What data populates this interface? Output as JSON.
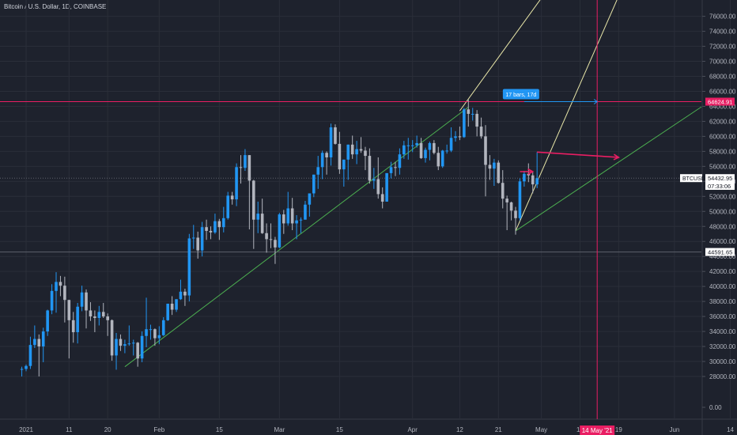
{
  "chart_data": {
    "type": "candlestick",
    "title": "Bitcoin / U.S. Dollar, 1D, COINBASE",
    "symbol": "BTCUSD",
    "colors": {
      "background": "#1e222d",
      "grid": "#2a2e39",
      "up": "#2196f3",
      "down": "#b2b5be",
      "trendline": "#4caf50",
      "projection": "#e8e6a8",
      "marker": "#e91e63",
      "measure": "#2196f3",
      "axis_text": "#b2b5be"
    },
    "y_ticks": [
      "0.00",
      "28000.00",
      "30000.00",
      "32000.00",
      "34000.00",
      "36000.00",
      "38000.00",
      "40000.00",
      "42000.00",
      "44000.00",
      "46000.00",
      "48000.00",
      "50000.00",
      "52000.00",
      "54000.00",
      "56000.00",
      "58000.00",
      "60000.00",
      "62000.00",
      "64000.00",
      "66000.00",
      "68000.00",
      "70000.00",
      "72000.00",
      "74000.00",
      "76000.00"
    ],
    "x_ticks": [
      {
        "label": "2021",
        "date": "2021-01-01"
      },
      {
        "label": "11",
        "date": "2021-01-11"
      },
      {
        "label": "20",
        "date": "2021-01-20"
      },
      {
        "label": "Feb",
        "date": "2021-02-01"
      },
      {
        "label": "15",
        "date": "2021-02-15"
      },
      {
        "label": "Mar",
        "date": "2021-03-01"
      },
      {
        "label": "15",
        "date": "2021-03-15"
      },
      {
        "label": "Apr",
        "date": "2021-04-01"
      },
      {
        "label": "12",
        "date": "2021-04-12"
      },
      {
        "label": "21",
        "date": "2021-04-21"
      },
      {
        "label": "May",
        "date": "2021-05-01"
      },
      {
        "label": "10",
        "date": "2021-05-10"
      },
      {
        "label": "19",
        "date": "2021-05-19"
      },
      {
        "label": "Jun",
        "date": "2021-06-01"
      },
      {
        "label": "14",
        "date": "2021-06-14"
      }
    ],
    "price_labels": [
      {
        "text": "64624.91",
        "value": 64624.91,
        "color": "#e91e63"
      },
      {
        "text": "54432.95",
        "value": 54432.95,
        "color": "#ffffff"
      },
      {
        "text": "07:33:06",
        "value": 53400,
        "color": "#ffffff"
      },
      {
        "text": "44591.65",
        "value": 44591.65,
        "color": "#ffffff"
      }
    ],
    "symbol_label": "BTCUSD",
    "measure_label": "17 bars, 17d",
    "date_marker_label": "14 May '21",
    "candles": [
      {
        "date": "2020-12-31",
        "o": 28900,
        "h": 29300,
        "l": 28000,
        "c": 29000
      },
      {
        "date": "2021-01-01",
        "o": 29000,
        "h": 29600,
        "l": 28700,
        "c": 29400
      },
      {
        "date": "2021-01-02",
        "o": 29400,
        "h": 33300,
        "l": 29000,
        "c": 32200
      },
      {
        "date": "2021-01-03",
        "o": 32200,
        "h": 34800,
        "l": 31800,
        "c": 33000
      },
      {
        "date": "2021-01-04",
        "o": 33000,
        "h": 33600,
        "l": 28000,
        "c": 32000
      },
      {
        "date": "2021-01-05",
        "o": 32000,
        "h": 34500,
        "l": 29900,
        "c": 34000
      },
      {
        "date": "2021-01-06",
        "o": 34000,
        "h": 36900,
        "l": 33400,
        "c": 36800
      },
      {
        "date": "2021-01-07",
        "o": 36800,
        "h": 40300,
        "l": 36300,
        "c": 39400
      },
      {
        "date": "2021-01-08",
        "o": 39400,
        "h": 41900,
        "l": 36500,
        "c": 40600
      },
      {
        "date": "2021-01-09",
        "o": 40600,
        "h": 41400,
        "l": 38700,
        "c": 40100
      },
      {
        "date": "2021-01-10",
        "o": 40100,
        "h": 41300,
        "l": 35200,
        "c": 38200
      },
      {
        "date": "2021-01-11",
        "o": 38200,
        "h": 38200,
        "l": 30400,
        "c": 35500
      },
      {
        "date": "2021-01-12",
        "o": 35500,
        "h": 36600,
        "l": 32500,
        "c": 33900
      },
      {
        "date": "2021-01-13",
        "o": 33900,
        "h": 37800,
        "l": 32400,
        "c": 37300
      },
      {
        "date": "2021-01-14",
        "o": 37300,
        "h": 40100,
        "l": 36700,
        "c": 39200
      },
      {
        "date": "2021-01-15",
        "o": 39200,
        "h": 39600,
        "l": 34400,
        "c": 36800
      },
      {
        "date": "2021-01-16",
        "o": 36800,
        "h": 37900,
        "l": 35400,
        "c": 36000
      },
      {
        "date": "2021-01-17",
        "o": 36000,
        "h": 36800,
        "l": 33900,
        "c": 35800
      },
      {
        "date": "2021-01-18",
        "o": 35800,
        "h": 37400,
        "l": 34800,
        "c": 36600
      },
      {
        "date": "2021-01-19",
        "o": 36600,
        "h": 37800,
        "l": 35800,
        "c": 36000
      },
      {
        "date": "2021-01-20",
        "o": 36000,
        "h": 36400,
        "l": 33400,
        "c": 35500
      },
      {
        "date": "2021-01-21",
        "o": 35500,
        "h": 35600,
        "l": 30100,
        "c": 30800
      },
      {
        "date": "2021-01-22",
        "o": 30800,
        "h": 33800,
        "l": 28900,
        "c": 33000
      },
      {
        "date": "2021-01-23",
        "o": 33000,
        "h": 33600,
        "l": 31400,
        "c": 32100
      },
      {
        "date": "2021-01-24",
        "o": 32100,
        "h": 32900,
        "l": 31100,
        "c": 32300
      },
      {
        "date": "2021-01-25",
        "o": 32300,
        "h": 34800,
        "l": 32100,
        "c": 32400
      },
      {
        "date": "2021-01-26",
        "o": 32400,
        "h": 32900,
        "l": 30800,
        "c": 32500
      },
      {
        "date": "2021-01-27",
        "o": 32500,
        "h": 32600,
        "l": 29300,
        "c": 30400
      },
      {
        "date": "2021-01-28",
        "o": 30400,
        "h": 34000,
        "l": 29900,
        "c": 33400
      },
      {
        "date": "2021-01-29",
        "o": 33400,
        "h": 38500,
        "l": 31900,
        "c": 34300
      },
      {
        "date": "2021-01-30",
        "o": 34300,
        "h": 34900,
        "l": 32900,
        "c": 34300
      },
      {
        "date": "2021-01-31",
        "o": 34300,
        "h": 34400,
        "l": 32100,
        "c": 33100
      },
      {
        "date": "2021-02-01",
        "o": 33100,
        "h": 34700,
        "l": 32300,
        "c": 33500
      },
      {
        "date": "2021-02-02",
        "o": 33500,
        "h": 35900,
        "l": 33400,
        "c": 35500
      },
      {
        "date": "2021-02-03",
        "o": 35500,
        "h": 37700,
        "l": 35400,
        "c": 37700
      },
      {
        "date": "2021-02-04",
        "o": 37700,
        "h": 38700,
        "l": 36200,
        "c": 36900
      },
      {
        "date": "2021-02-05",
        "o": 36900,
        "h": 38300,
        "l": 36600,
        "c": 38300
      },
      {
        "date": "2021-02-06",
        "o": 38300,
        "h": 40900,
        "l": 38200,
        "c": 39300
      },
      {
        "date": "2021-02-07",
        "o": 39300,
        "h": 39700,
        "l": 37400,
        "c": 38800
      },
      {
        "date": "2021-02-08",
        "o": 38800,
        "h": 47000,
        "l": 38000,
        "c": 46400
      },
      {
        "date": "2021-02-09",
        "o": 46400,
        "h": 48200,
        "l": 45000,
        "c": 46500
      },
      {
        "date": "2021-02-10",
        "o": 46500,
        "h": 47300,
        "l": 43700,
        "c": 44800
      },
      {
        "date": "2021-02-11",
        "o": 44800,
        "h": 48600,
        "l": 44000,
        "c": 47900
      },
      {
        "date": "2021-02-12",
        "o": 47900,
        "h": 48900,
        "l": 46200,
        "c": 47400
      },
      {
        "date": "2021-02-13",
        "o": 47400,
        "h": 48000,
        "l": 46300,
        "c": 47200
      },
      {
        "date": "2021-02-14",
        "o": 47200,
        "h": 49700,
        "l": 47000,
        "c": 48700
      },
      {
        "date": "2021-02-15",
        "o": 48700,
        "h": 49000,
        "l": 46200,
        "c": 47900
      },
      {
        "date": "2021-02-16",
        "o": 47900,
        "h": 50600,
        "l": 47200,
        "c": 49100
      },
      {
        "date": "2021-02-17",
        "o": 49100,
        "h": 52600,
        "l": 48900,
        "c": 52100
      },
      {
        "date": "2021-02-18",
        "o": 52100,
        "h": 52600,
        "l": 50900,
        "c": 51600
      },
      {
        "date": "2021-02-19",
        "o": 51600,
        "h": 56400,
        "l": 50700,
        "c": 55900
      },
      {
        "date": "2021-02-20",
        "o": 55900,
        "h": 57500,
        "l": 53700,
        "c": 55800
      },
      {
        "date": "2021-02-21",
        "o": 55800,
        "h": 58300,
        "l": 55400,
        "c": 57500
      },
      {
        "date": "2021-02-22",
        "o": 57500,
        "h": 57500,
        "l": 47600,
        "c": 54100
      },
      {
        "date": "2021-02-23",
        "o": 54100,
        "h": 54200,
        "l": 45000,
        "c": 48900
      },
      {
        "date": "2021-02-24",
        "o": 48900,
        "h": 51300,
        "l": 47100,
        "c": 49700
      },
      {
        "date": "2021-02-25",
        "o": 49700,
        "h": 51700,
        "l": 47000,
        "c": 47100
      },
      {
        "date": "2021-02-26",
        "o": 47100,
        "h": 48400,
        "l": 44500,
        "c": 46300
      },
      {
        "date": "2021-02-27",
        "o": 46300,
        "h": 48400,
        "l": 45100,
        "c": 46200
      },
      {
        "date": "2021-02-28",
        "o": 46200,
        "h": 46600,
        "l": 43000,
        "c": 45200
      },
      {
        "date": "2021-03-01",
        "o": 45200,
        "h": 49800,
        "l": 45100,
        "c": 49600
      },
      {
        "date": "2021-03-02",
        "o": 49600,
        "h": 50200,
        "l": 47000,
        "c": 48400
      },
      {
        "date": "2021-03-03",
        "o": 48400,
        "h": 52600,
        "l": 48100,
        "c": 50400
      },
      {
        "date": "2021-03-04",
        "o": 50400,
        "h": 51800,
        "l": 47500,
        "c": 48400
      },
      {
        "date": "2021-03-05",
        "o": 48400,
        "h": 49500,
        "l": 46300,
        "c": 48800
      },
      {
        "date": "2021-03-06",
        "o": 48800,
        "h": 49200,
        "l": 47100,
        "c": 48900
      },
      {
        "date": "2021-03-07",
        "o": 48900,
        "h": 51400,
        "l": 48900,
        "c": 50900
      },
      {
        "date": "2021-03-08",
        "o": 50900,
        "h": 52400,
        "l": 49300,
        "c": 52400
      },
      {
        "date": "2021-03-09",
        "o": 52400,
        "h": 54900,
        "l": 51900,
        "c": 54900
      },
      {
        "date": "2021-03-10",
        "o": 54900,
        "h": 57400,
        "l": 53000,
        "c": 55900
      },
      {
        "date": "2021-03-11",
        "o": 55900,
        "h": 58100,
        "l": 54300,
        "c": 57800
      },
      {
        "date": "2021-03-12",
        "o": 57800,
        "h": 58000,
        "l": 54900,
        "c": 57200
      },
      {
        "date": "2021-03-13",
        "o": 57200,
        "h": 61700,
        "l": 56100,
        "c": 61200
      },
      {
        "date": "2021-03-14",
        "o": 61200,
        "h": 61600,
        "l": 58900,
        "c": 59000
      },
      {
        "date": "2021-03-15",
        "o": 59000,
        "h": 60600,
        "l": 55000,
        "c": 55600
      },
      {
        "date": "2021-03-16",
        "o": 55600,
        "h": 56900,
        "l": 53300,
        "c": 56900
      },
      {
        "date": "2021-03-17",
        "o": 56900,
        "h": 58900,
        "l": 54200,
        "c": 58900
      },
      {
        "date": "2021-03-18",
        "o": 58900,
        "h": 60100,
        "l": 57000,
        "c": 57600
      },
      {
        "date": "2021-03-19",
        "o": 57600,
        "h": 59400,
        "l": 56300,
        "c": 58300
      },
      {
        "date": "2021-03-20",
        "o": 58300,
        "h": 59900,
        "l": 57800,
        "c": 58100
      },
      {
        "date": "2021-03-21",
        "o": 58100,
        "h": 58600,
        "l": 55500,
        "c": 57400
      },
      {
        "date": "2021-03-22",
        "o": 57400,
        "h": 58400,
        "l": 53700,
        "c": 54100
      },
      {
        "date": "2021-03-23",
        "o": 54100,
        "h": 55800,
        "l": 53000,
        "c": 54300
      },
      {
        "date": "2021-03-24",
        "o": 54300,
        "h": 57200,
        "l": 51700,
        "c": 52300
      },
      {
        "date": "2021-03-25",
        "o": 52300,
        "h": 53200,
        "l": 50400,
        "c": 51300
      },
      {
        "date": "2021-03-26",
        "o": 51300,
        "h": 55100,
        "l": 51300,
        "c": 55100
      },
      {
        "date": "2021-03-27",
        "o": 55100,
        "h": 56600,
        "l": 54400,
        "c": 55900
      },
      {
        "date": "2021-03-28",
        "o": 55900,
        "h": 56600,
        "l": 54700,
        "c": 55800
      },
      {
        "date": "2021-03-29",
        "o": 55800,
        "h": 58400,
        "l": 54900,
        "c": 57600
      },
      {
        "date": "2021-03-30",
        "o": 57600,
        "h": 59400,
        "l": 57000,
        "c": 58800
      },
      {
        "date": "2021-03-31",
        "o": 58800,
        "h": 59800,
        "l": 56900,
        "c": 58800
      },
      {
        "date": "2021-04-01",
        "o": 58800,
        "h": 59500,
        "l": 57900,
        "c": 58800
      },
      {
        "date": "2021-04-02",
        "o": 58800,
        "h": 60100,
        "l": 58500,
        "c": 59100
      },
      {
        "date": "2021-04-03",
        "o": 59100,
        "h": 59800,
        "l": 57000,
        "c": 57100
      },
      {
        "date": "2021-04-04",
        "o": 57100,
        "h": 58500,
        "l": 56500,
        "c": 58200
      },
      {
        "date": "2021-04-05",
        "o": 58200,
        "h": 59300,
        "l": 56800,
        "c": 59100
      },
      {
        "date": "2021-04-06",
        "o": 59100,
        "h": 59500,
        "l": 57600,
        "c": 57800
      },
      {
        "date": "2021-04-07",
        "o": 57800,
        "h": 58600,
        "l": 55500,
        "c": 56000
      },
      {
        "date": "2021-04-08",
        "o": 56000,
        "h": 58200,
        "l": 55800,
        "c": 58100
      },
      {
        "date": "2021-04-09",
        "o": 58100,
        "h": 58900,
        "l": 57700,
        "c": 58100
      },
      {
        "date": "2021-04-10",
        "o": 58100,
        "h": 61200,
        "l": 57900,
        "c": 59800
      },
      {
        "date": "2021-04-11",
        "o": 59800,
        "h": 60700,
        "l": 59300,
        "c": 60000
      },
      {
        "date": "2021-04-12",
        "o": 60000,
        "h": 61300,
        "l": 59500,
        "c": 59900
      },
      {
        "date": "2021-04-13",
        "o": 59900,
        "h": 63800,
        "l": 59800,
        "c": 63600
      },
      {
        "date": "2021-04-14",
        "o": 63600,
        "h": 64900,
        "l": 61300,
        "c": 63000
      },
      {
        "date": "2021-04-15",
        "o": 63000,
        "h": 63800,
        "l": 62100,
        "c": 63000
      },
      {
        "date": "2021-04-16",
        "o": 63000,
        "h": 63500,
        "l": 60000,
        "c": 61300
      },
      {
        "date": "2021-04-17",
        "o": 61300,
        "h": 62500,
        "l": 59700,
        "c": 60000
      },
      {
        "date": "2021-04-18",
        "o": 60000,
        "h": 61500,
        "l": 52000,
        "c": 56200
      },
      {
        "date": "2021-04-19",
        "o": 56200,
        "h": 57500,
        "l": 54200,
        "c": 55700
      },
      {
        "date": "2021-04-20",
        "o": 55700,
        "h": 57000,
        "l": 53400,
        "c": 56500
      },
      {
        "date": "2021-04-21",
        "o": 56500,
        "h": 56800,
        "l": 53700,
        "c": 53800
      },
      {
        "date": "2021-04-22",
        "o": 53800,
        "h": 55500,
        "l": 50400,
        "c": 51700
      },
      {
        "date": "2021-04-23",
        "o": 51700,
        "h": 52100,
        "l": 47500,
        "c": 51200
      },
      {
        "date": "2021-04-24",
        "o": 51200,
        "h": 51300,
        "l": 48800,
        "c": 50100
      },
      {
        "date": "2021-04-25",
        "o": 50100,
        "h": 50600,
        "l": 46900,
        "c": 49100
      },
      {
        "date": "2021-04-26",
        "o": 49100,
        "h": 54400,
        "l": 48800,
        "c": 54000
      },
      {
        "date": "2021-04-27",
        "o": 54000,
        "h": 55400,
        "l": 53300,
        "c": 55000
      },
      {
        "date": "2021-04-28",
        "o": 55000,
        "h": 56400,
        "l": 53900,
        "c": 54800
      },
      {
        "date": "2021-04-29",
        "o": 54800,
        "h": 55200,
        "l": 52400,
        "c": 53600
      },
      {
        "date": "2021-04-30",
        "o": 53600,
        "h": 57900,
        "l": 53100,
        "c": 54433
      }
    ],
    "drawings": {
      "trendline_1": {
        "from": {
          "date": "2021-01-24",
          "price": 29300
        },
        "to": {
          "date": "2021-04-14",
          "price": 63900
        }
      },
      "trendline_2": {
        "from": {
          "date": "2021-04-25",
          "price": 47400
        },
        "to": {
          "date": "2021-06-14",
          "price": 66500
        }
      },
      "projection_1": {
        "from": {
          "date": "2021-04-12",
          "price": 63400
        },
        "to": {
          "date": "2021-05-03",
          "price": 80000
        }
      },
      "projection_2": {
        "from": {
          "date": "2021-04-25",
          "price": 47400
        },
        "to": {
          "date": "2021-05-20",
          "price": 80000
        }
      },
      "horizontal_64624": {
        "price": 64624.91
      },
      "horizontal_44591": {
        "price": 44591.65
      },
      "horizontal_54432": {
        "price": 54432.95
      },
      "vertical_date": {
        "date": "2021-05-14"
      },
      "measure": {
        "from": {
          "date": "2021-04-27",
          "price": 64624.91
        },
        "to": {
          "date": "2021-05-14",
          "price": 64624.91
        }
      },
      "arrow_small": {
        "from": {
          "date": "2021-04-26",
          "price": 55300
        },
        "to": {
          "date": "2021-04-29",
          "price": 55300
        }
      },
      "arrow_big": {
        "from": {
          "date": "2021-04-30",
          "price": 57900
        },
        "to": {
          "date": "2021-05-19",
          "price": 57200
        }
      }
    }
  }
}
